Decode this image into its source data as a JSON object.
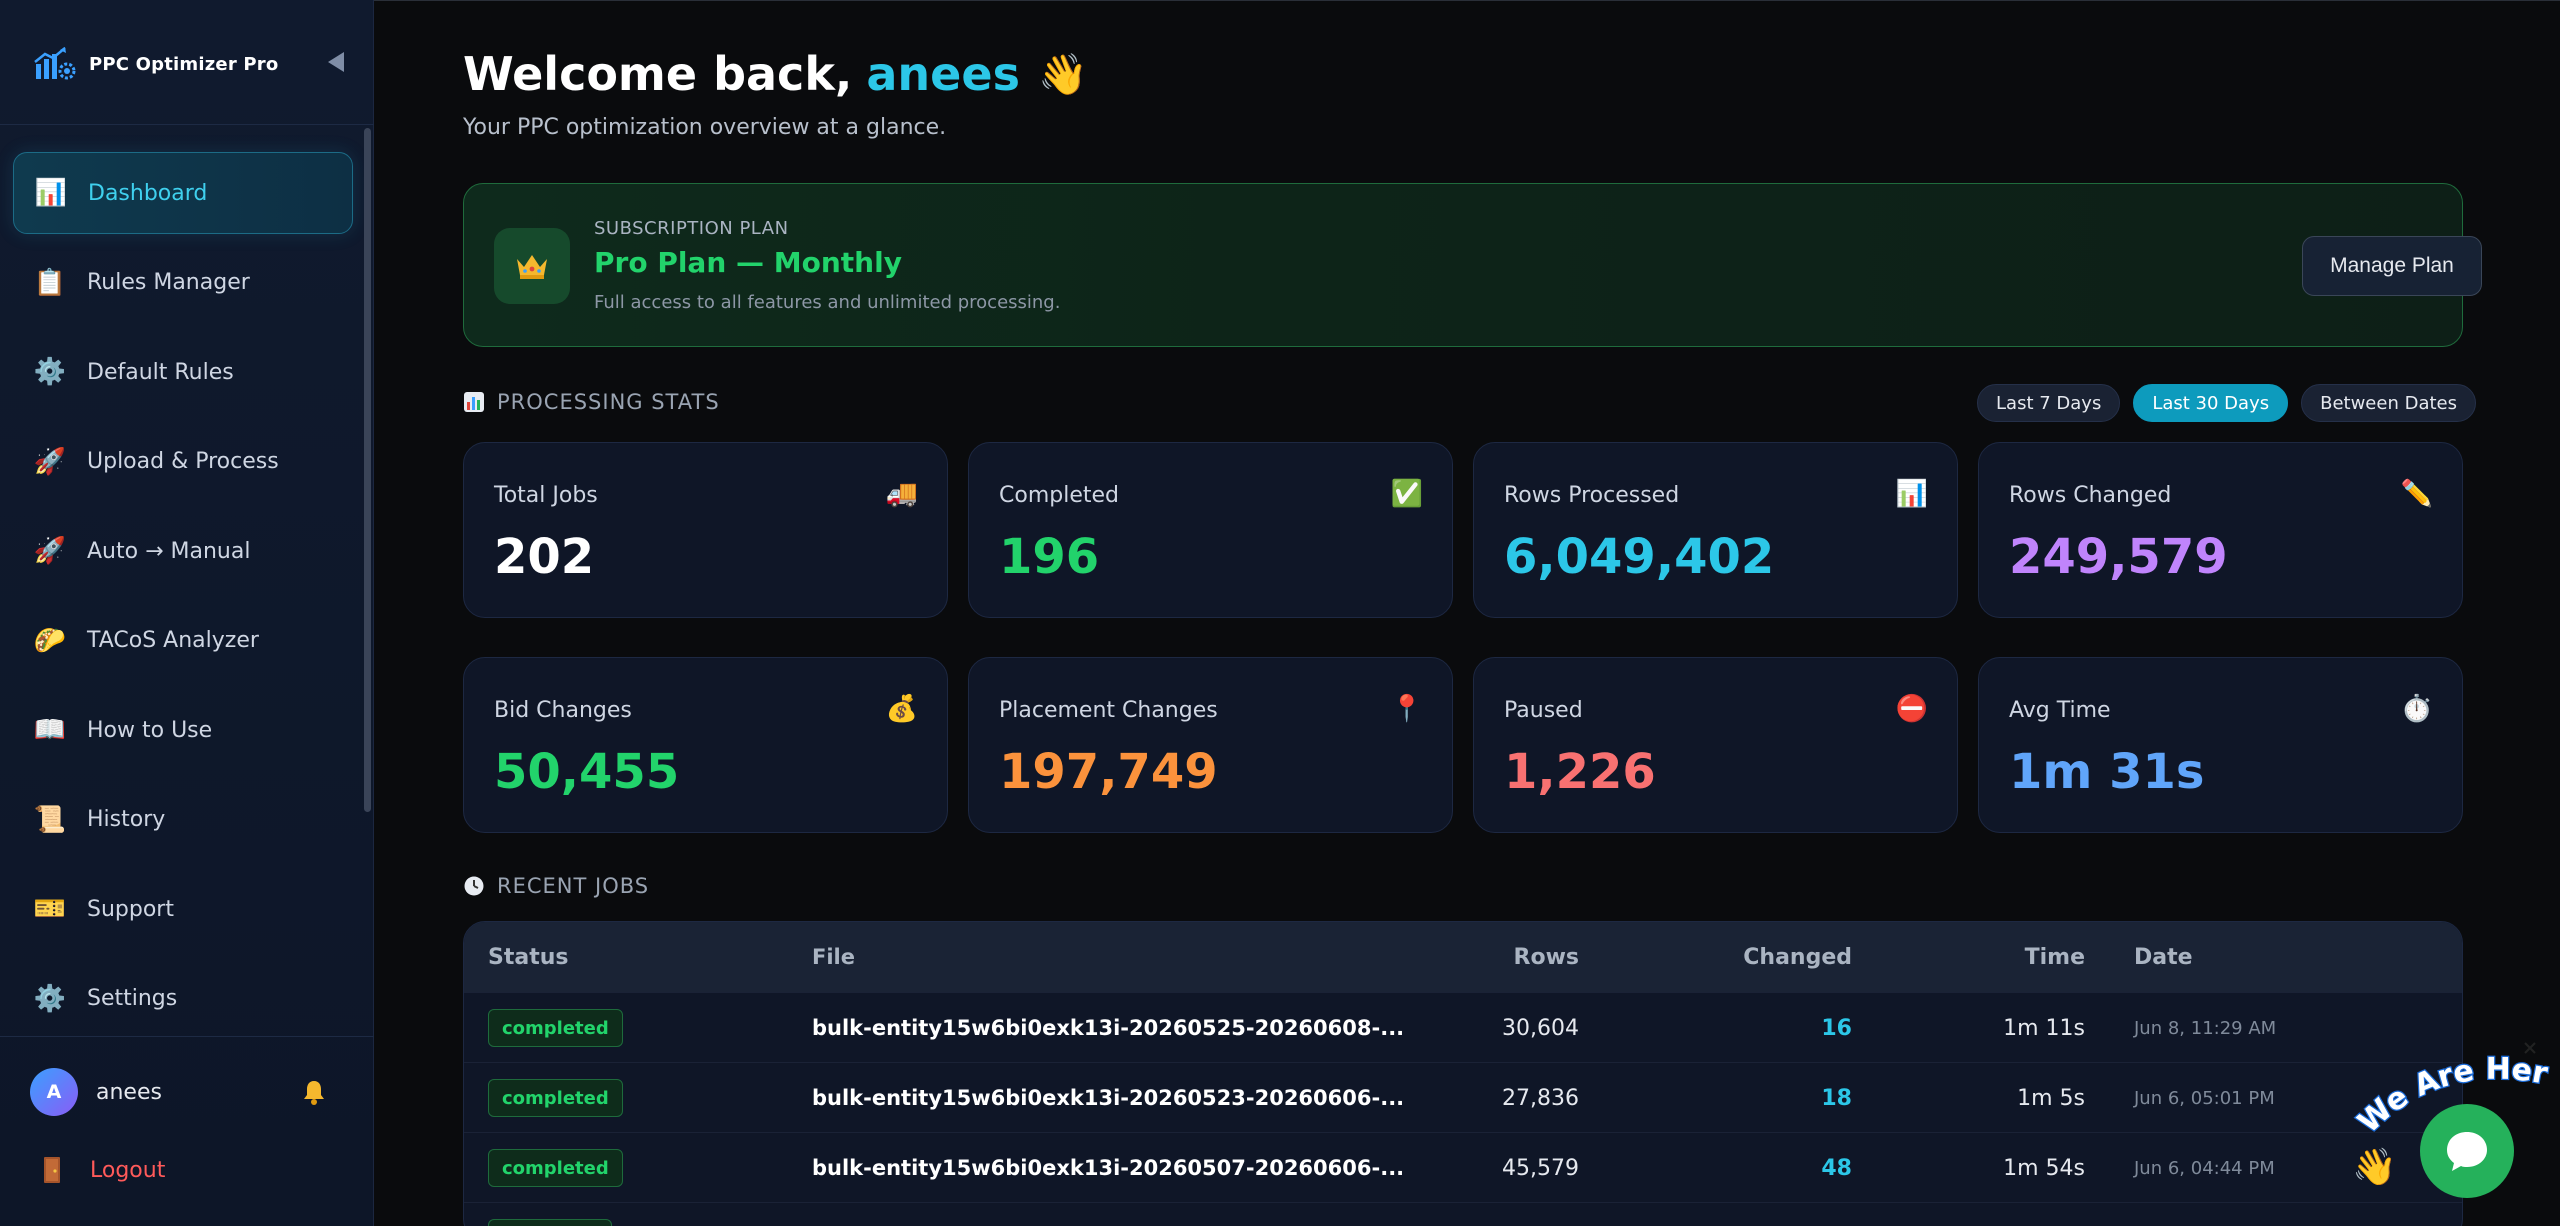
{
  "app": {
    "name": "PPC Optimizer Pro"
  },
  "sidebar": {
    "items": [
      {
        "label": "Dashboard",
        "icon": "bar-chart-icon",
        "active": true
      },
      {
        "label": "Rules Manager",
        "icon": "clipboard-icon"
      },
      {
        "label": "Default Rules",
        "icon": "gear-icon"
      },
      {
        "label": "Upload & Process",
        "icon": "rocket-icon"
      },
      {
        "label": "Auto → Manual",
        "icon": "rocket-icon"
      },
      {
        "label": "TACoS Analyzer",
        "icon": "taco-icon"
      },
      {
        "label": "How to Use",
        "icon": "book-icon"
      },
      {
        "label": "History",
        "icon": "scroll-icon"
      },
      {
        "label": "Support",
        "icon": "ticket-icon"
      },
      {
        "label": "Settings",
        "icon": "gear-icon"
      }
    ],
    "user": {
      "initial": "A",
      "name": "anees"
    },
    "logout_label": "Logout"
  },
  "header": {
    "welcome_prefix": "Welcome back,",
    "username": "anees",
    "wave": "👋",
    "subtitle": "Your PPC optimization overview at a glance."
  },
  "plan": {
    "kicker": "SUBSCRIPTION PLAN",
    "name": "Pro Plan — Monthly",
    "description": "Full access to all features and unlimited processing.",
    "manage_label": "Manage Plan"
  },
  "stats": {
    "section_label": "PROCESSING STATS",
    "ranges": [
      {
        "label": "Last 7 Days",
        "active": false
      },
      {
        "label": "Last 30 Days",
        "active": true
      },
      {
        "label": "Between Dates",
        "active": false
      }
    ],
    "cards": [
      {
        "label": "Total Jobs",
        "value": "202",
        "icon": "truck-icon",
        "color": "#ffffff"
      },
      {
        "label": "Completed",
        "value": "196",
        "icon": "check-box-icon",
        "color": "#22d36b"
      },
      {
        "label": "Rows Processed",
        "value": "6,049,402",
        "icon": "bar-chart-icon",
        "color": "#2cc7e8"
      },
      {
        "label": "Rows Changed",
        "value": "249,579",
        "icon": "pencil-icon",
        "color": "#c084fc"
      },
      {
        "label": "Bid Changes",
        "value": "50,455",
        "icon": "money-bag-icon",
        "color": "#22d36b"
      },
      {
        "label": "Placement Changes",
        "value": "197,749",
        "icon": "pin-icon",
        "color": "#fb923c"
      },
      {
        "label": "Paused",
        "value": "1,226",
        "icon": "no-entry-icon",
        "color": "#f87171"
      },
      {
        "label": "Avg Time",
        "value": "1m 31s",
        "icon": "stopwatch-icon",
        "color": "#60a5fa"
      }
    ]
  },
  "recent_jobs": {
    "section_label": "RECENT JOBS",
    "columns": [
      "Status",
      "File",
      "Rows",
      "Changed",
      "Time",
      "Date"
    ],
    "rows": [
      {
        "status": "completed",
        "file": "bulk-entity15w6bi0exk13i-20260525-20260608-...",
        "rows": "30,604",
        "changed": "16",
        "time": "1m 11s",
        "date": "Jun 8, 11:29 AM"
      },
      {
        "status": "completed",
        "file": "bulk-entity15w6bi0exk13i-20260523-20260606-...",
        "rows": "27,836",
        "changed": "18",
        "time": "1m 5s",
        "date": "Jun 6, 05:01 PM"
      },
      {
        "status": "completed",
        "file": "bulk-entity15w6bi0exk13i-20260507-20260606-...",
        "rows": "45,579",
        "changed": "48",
        "time": "1m 54s",
        "date": "Jun 6, 04:44 PM"
      }
    ]
  },
  "chat": {
    "tagline": "We Are Here!"
  },
  "colors": {
    "accent": "#2cc7e8",
    "success": "#22d36b",
    "danger": "#ff5a5a",
    "range_active": "#0d9bbd"
  }
}
